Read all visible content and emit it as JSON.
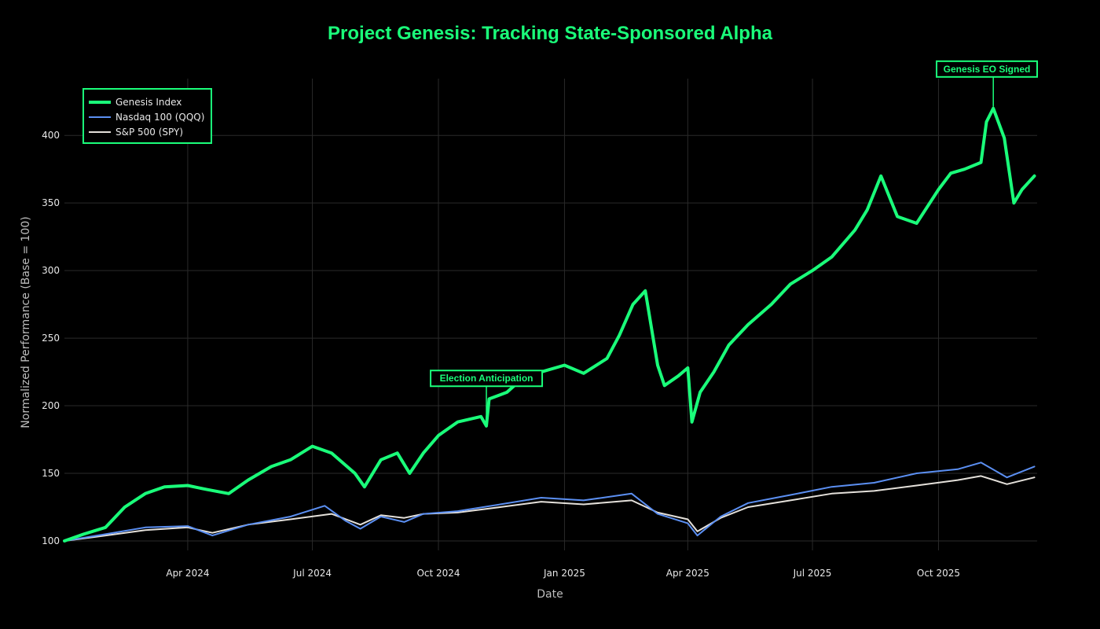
{
  "chart_data": {
    "type": "line",
    "title": "Project Genesis: Tracking State-Sponsored Alpha",
    "xlabel": "Date",
    "ylabel": "Normalized Performance (Base = 100)",
    "xlim": [
      "2024-01-02",
      "2025-12-12"
    ],
    "ylim": [
      93,
      442
    ],
    "yticks": [
      100,
      150,
      200,
      250,
      300,
      350,
      400
    ],
    "xticks": [
      {
        "date": "2024-04-01",
        "label": "Apr 2024"
      },
      {
        "date": "2024-07-01",
        "label": "Jul 2024"
      },
      {
        "date": "2024-10-01",
        "label": "Oct 2024"
      },
      {
        "date": "2025-01-01",
        "label": "Jan 2025"
      },
      {
        "date": "2025-04-01",
        "label": "Apr 2025"
      },
      {
        "date": "2025-07-01",
        "label": "Jul 2025"
      },
      {
        "date": "2025-10-01",
        "label": "Oct 2025"
      }
    ],
    "grid": true,
    "legend_position": "top-left",
    "colors": {
      "background": "#000000",
      "accent": "#1aff7a",
      "grid": "#2a2a2a"
    },
    "series": [
      {
        "name": "Genesis Index",
        "color": "#1aff7a",
        "x": [
          "2024-01-02",
          "2024-01-16",
          "2024-02-01",
          "2024-02-15",
          "2024-03-01",
          "2024-03-15",
          "2024-04-01",
          "2024-04-15",
          "2024-05-01",
          "2024-05-15",
          "2024-06-01",
          "2024-06-15",
          "2024-07-01",
          "2024-07-15",
          "2024-08-01",
          "2024-08-08",
          "2024-08-20",
          "2024-09-01",
          "2024-09-10",
          "2024-09-20",
          "2024-10-01",
          "2024-10-15",
          "2024-11-01",
          "2024-11-05",
          "2024-11-07",
          "2024-11-20",
          "2024-12-01",
          "2024-12-15",
          "2025-01-01",
          "2025-01-15",
          "2025-02-01",
          "2025-02-10",
          "2025-02-20",
          "2025-03-01",
          "2025-03-10",
          "2025-03-15",
          "2025-03-25",
          "2025-04-01",
          "2025-04-04",
          "2025-04-10",
          "2025-04-20",
          "2025-05-01",
          "2025-05-15",
          "2025-06-01",
          "2025-06-15",
          "2025-07-01",
          "2025-07-15",
          "2025-08-01",
          "2025-08-10",
          "2025-08-20",
          "2025-09-01",
          "2025-09-15",
          "2025-10-01",
          "2025-10-10",
          "2025-10-20",
          "2025-11-01",
          "2025-11-05",
          "2025-11-10",
          "2025-11-18",
          "2025-11-25",
          "2025-12-01",
          "2025-12-10"
        ],
        "values": [
          100,
          105,
          110,
          125,
          135,
          140,
          141,
          138,
          135,
          145,
          155,
          160,
          170,
          165,
          150,
          140,
          160,
          165,
          150,
          165,
          178,
          188,
          192,
          185,
          205,
          210,
          220,
          225,
          230,
          224,
          235,
          252,
          275,
          285,
          230,
          215,
          222,
          228,
          188,
          210,
          225,
          245,
          260,
          275,
          290,
          300,
          310,
          330,
          345,
          370,
          340,
          335,
          360,
          372,
          375,
          380,
          410,
          420,
          398,
          350,
          360,
          370
        ]
      },
      {
        "name": "Nasdaq 100 (QQQ)",
        "color": "#5b8ff2",
        "x": [
          "2024-01-02",
          "2024-02-01",
          "2024-03-01",
          "2024-04-01",
          "2024-04-19",
          "2024-05-15",
          "2024-06-15",
          "2024-07-10",
          "2024-07-25",
          "2024-08-05",
          "2024-08-20",
          "2024-09-06",
          "2024-09-20",
          "2024-10-15",
          "2024-11-15",
          "2024-12-15",
          "2025-01-15",
          "2025-02-19",
          "2025-03-10",
          "2025-04-01",
          "2025-04-08",
          "2025-04-25",
          "2025-05-15",
          "2025-06-15",
          "2025-07-15",
          "2025-08-15",
          "2025-09-15",
          "2025-10-15",
          "2025-11-01",
          "2025-11-20",
          "2025-12-10"
        ],
        "values": [
          100,
          105,
          110,
          111,
          104,
          112,
          118,
          126,
          115,
          109,
          118,
          114,
          120,
          122,
          127,
          132,
          130,
          135,
          120,
          113,
          104,
          118,
          128,
          134,
          140,
          143,
          150,
          153,
          158,
          147,
          155
        ]
      },
      {
        "name": "S&P 500 (SPY)",
        "color": "#e4e0da",
        "x": [
          "2024-01-02",
          "2024-02-01",
          "2024-03-01",
          "2024-04-01",
          "2024-04-19",
          "2024-05-15",
          "2024-06-15",
          "2024-07-15",
          "2024-08-05",
          "2024-08-20",
          "2024-09-06",
          "2024-09-20",
          "2024-10-15",
          "2024-11-15",
          "2024-12-15",
          "2025-01-15",
          "2025-02-19",
          "2025-03-10",
          "2025-04-01",
          "2025-04-08",
          "2025-04-25",
          "2025-05-15",
          "2025-06-15",
          "2025-07-15",
          "2025-08-15",
          "2025-09-15",
          "2025-10-15",
          "2025-11-01",
          "2025-11-20",
          "2025-12-10"
        ],
        "values": [
          100,
          104,
          108,
          110,
          106,
          112,
          116,
          120,
          112,
          119,
          117,
          120,
          121,
          125,
          129,
          127,
          130,
          121,
          116,
          107,
          117,
          125,
          130,
          135,
          137,
          141,
          145,
          148,
          142,
          147
        ]
      }
    ],
    "annotations": [
      {
        "text": "Election Anticipation",
        "x": "2024-11-05",
        "y": 190
      },
      {
        "text": "Genesis EO Signed",
        "x": "2025-11-10",
        "y": 420
      }
    ]
  }
}
